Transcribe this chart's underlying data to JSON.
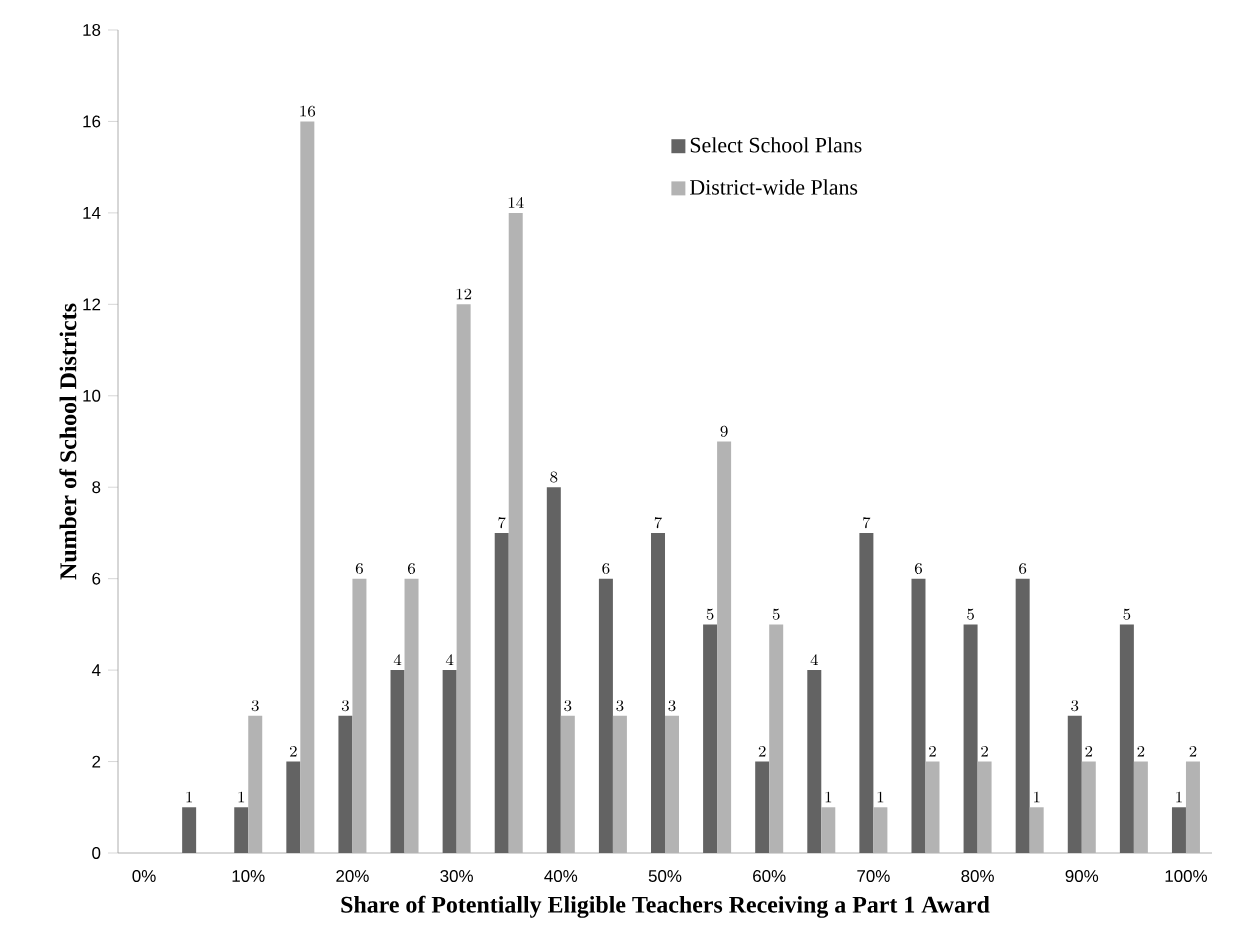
{
  "chart_data": {
    "type": "bar",
    "xlabel": "Share of Potentially Eligible Teachers Receiving a Part 1 Award",
    "ylabel": "Number of School Districts",
    "categories": [
      "0%",
      null,
      "10%",
      null,
      "20%",
      null,
      "30%",
      null,
      "40%",
      null,
      "50%",
      null,
      "60%",
      null,
      "70%",
      null,
      "80%",
      null,
      "90%",
      null,
      "100%"
    ],
    "series": [
      {
        "name": "Select School Plans",
        "color": "#636363",
        "values": [
          null,
          1,
          1,
          2,
          3,
          4,
          4,
          7,
          8,
          6,
          7,
          5,
          2,
          4,
          7,
          6,
          5,
          6,
          3,
          5,
          1
        ]
      },
      {
        "name": "District-wide Plans",
        "color": "#b3b3b3",
        "values": [
          null,
          null,
          3,
          16,
          6,
          6,
          12,
          14,
          3,
          3,
          3,
          9,
          5,
          1,
          1,
          2,
          2,
          1,
          2,
          2,
          2
        ]
      }
    ],
    "ylim": [
      0,
      18
    ],
    "yticks": [
      0,
      2,
      4,
      6,
      8,
      10,
      12,
      14,
      16,
      18
    ],
    "data_labels": true,
    "legend": "top right",
    "grid": false
  }
}
